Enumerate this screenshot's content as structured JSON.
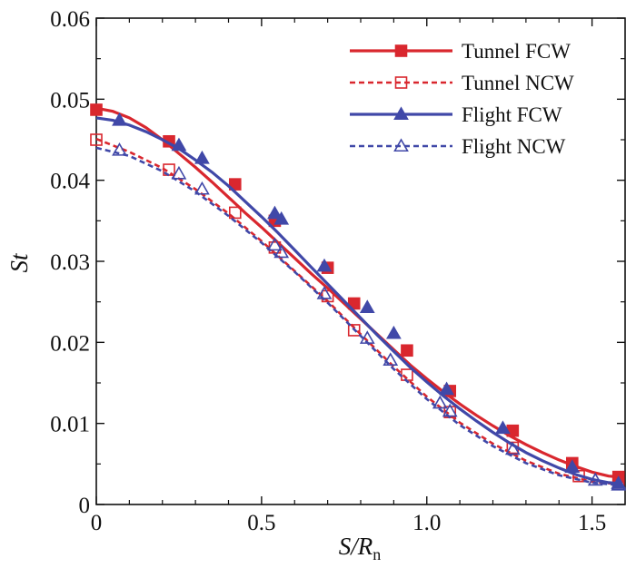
{
  "chart_data": {
    "type": "line",
    "title": "",
    "xlabel": {
      "main": "S/R",
      "sub": "n"
    },
    "ylabel": "St",
    "xlim": [
      0,
      1.6
    ],
    "ylim": [
      0,
      0.06
    ],
    "x_ticks": [
      {
        "v": 0,
        "label": "0"
      },
      {
        "v": 0.5,
        "label": "0.5"
      },
      {
        "v": 1.0,
        "label": "1.0"
      },
      {
        "v": 1.5,
        "label": "1.5"
      }
    ],
    "y_ticks": [
      {
        "v": 0,
        "label": "0"
      },
      {
        "v": 0.01,
        "label": "0.01"
      },
      {
        "v": 0.02,
        "label": "0.02"
      },
      {
        "v": 0.03,
        "label": "0.03"
      },
      {
        "v": 0.04,
        "label": "0.04"
      },
      {
        "v": 0.05,
        "label": "0.05"
      },
      {
        "v": 0.06,
        "label": "0.06"
      }
    ],
    "legend_position": "top-right",
    "series": [
      {
        "name": "Tunnel FCW",
        "color": "#d9272e",
        "line": "solid",
        "marker": "square-filled",
        "x": [
          0,
          0.05,
          0.1,
          0.15,
          0.2,
          0.25,
          0.3,
          0.35,
          0.4,
          0.45,
          0.5,
          0.55,
          0.6,
          0.65,
          0.7,
          0.75,
          0.8,
          0.85,
          0.9,
          0.95,
          1.0,
          1.05,
          1.1,
          1.15,
          1.2,
          1.25,
          1.3,
          1.35,
          1.4,
          1.45,
          1.5,
          1.55,
          1.58
        ],
        "y": [
          0.0489,
          0.0485,
          0.0477,
          0.0465,
          0.045,
          0.0433,
          0.0416,
          0.0398,
          0.0379,
          0.036,
          0.0342,
          0.0323,
          0.0304,
          0.0285,
          0.0267,
          0.0248,
          0.0229,
          0.021,
          0.0191,
          0.0172,
          0.0155,
          0.0139,
          0.0124,
          0.011,
          0.0097,
          0.0085,
          0.0074,
          0.0064,
          0.0055,
          0.0047,
          0.004,
          0.0035,
          0.0034
        ],
        "marker_x": [
          0,
          0.22,
          0.42,
          0.54,
          0.7,
          0.78,
          0.94,
          1.07,
          1.26,
          1.44,
          1.58
        ],
        "marker_y": [
          0.0487,
          0.0448,
          0.0395,
          0.035,
          0.0292,
          0.0248,
          0.019,
          0.014,
          0.0091,
          0.0051,
          0.0034
        ]
      },
      {
        "name": "Tunnel NCW",
        "color": "#d9272e",
        "line": "dashed",
        "marker": "square-open",
        "x": [
          0,
          0.1,
          0.2,
          0.3,
          0.4,
          0.5,
          0.6,
          0.7,
          0.8,
          0.9,
          1.0,
          1.1,
          1.2,
          1.3,
          1.4,
          1.5,
          1.58
        ],
        "y": [
          0.0451,
          0.0435,
          0.0415,
          0.0389,
          0.0359,
          0.0325,
          0.0288,
          0.0251,
          0.021,
          0.017,
          0.0133,
          0.0101,
          0.0075,
          0.0054,
          0.0038,
          0.0028,
          0.0025
        ],
        "marker_x": [
          0,
          0.22,
          0.42,
          0.54,
          0.7,
          0.78,
          0.94,
          1.07,
          1.26,
          1.46,
          1.58
        ],
        "marker_y": [
          0.045,
          0.0413,
          0.036,
          0.0317,
          0.0257,
          0.0215,
          0.016,
          0.0114,
          0.007,
          0.0035,
          0.0025
        ]
      },
      {
        "name": "Flight FCW",
        "color": "#4048a8",
        "line": "solid",
        "marker": "triangle-filled",
        "x": [
          0,
          0.05,
          0.1,
          0.15,
          0.2,
          0.25,
          0.3,
          0.35,
          0.4,
          0.45,
          0.5,
          0.55,
          0.6,
          0.65,
          0.7,
          0.75,
          0.8,
          0.85,
          0.9,
          0.95,
          1.0,
          1.05,
          1.1,
          1.15,
          1.2,
          1.25,
          1.3,
          1.35,
          1.4,
          1.45,
          1.5,
          1.55,
          1.58
        ],
        "y": [
          0.0477,
          0.0474,
          0.0468,
          0.046,
          0.045,
          0.0439,
          0.0425,
          0.041,
          0.0393,
          0.0374,
          0.0355,
          0.0335,
          0.0314,
          0.0293,
          0.0272,
          0.0251,
          0.023,
          0.0209,
          0.0189,
          0.0169,
          0.0151,
          0.0134,
          0.0118,
          0.0103,
          0.0089,
          0.0076,
          0.0064,
          0.0054,
          0.0045,
          0.0037,
          0.0031,
          0.0027,
          0.0026
        ],
        "marker_x": [
          0.07,
          0.25,
          0.32,
          0.54,
          0.56,
          0.69,
          0.82,
          0.9,
          1.06,
          1.23,
          1.44,
          1.58
        ],
        "marker_y": [
          0.0474,
          0.0443,
          0.0427,
          0.0359,
          0.0352,
          0.0294,
          0.0243,
          0.0211,
          0.0142,
          0.0094,
          0.0046,
          0.0026
        ]
      },
      {
        "name": "Flight NCW",
        "color": "#4048a8",
        "line": "dashed",
        "marker": "triangle-open",
        "x": [
          0,
          0.1,
          0.2,
          0.3,
          0.4,
          0.5,
          0.6,
          0.7,
          0.8,
          0.9,
          1.0,
          1.1,
          1.2,
          1.3,
          1.4,
          1.5,
          1.58
        ],
        "y": [
          0.044,
          0.043,
          0.0411,
          0.0386,
          0.0356,
          0.0323,
          0.0287,
          0.0249,
          0.0208,
          0.0167,
          0.013,
          0.0098,
          0.0072,
          0.0051,
          0.0036,
          0.0027,
          0.0024
        ],
        "marker_x": [
          0.07,
          0.25,
          0.32,
          0.54,
          0.56,
          0.69,
          0.82,
          0.89,
          1.04,
          1.07,
          1.26,
          1.51,
          1.58
        ],
        "marker_y": [
          0.0437,
          0.0408,
          0.0389,
          0.032,
          0.0311,
          0.026,
          0.0205,
          0.0178,
          0.0125,
          0.0115,
          0.0068,
          0.003,
          0.0024
        ]
      }
    ]
  }
}
